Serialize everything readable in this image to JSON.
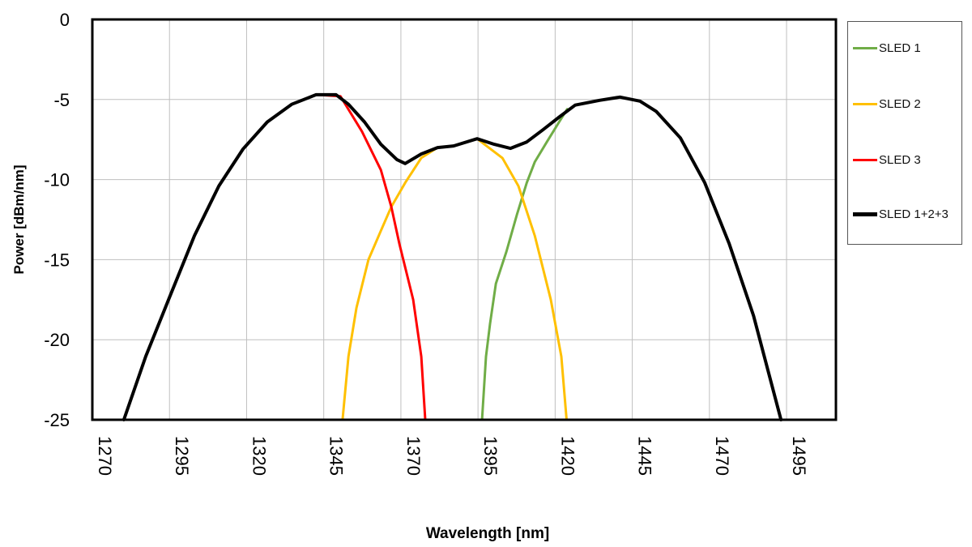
{
  "chart_data": {
    "type": "line",
    "title": "",
    "xlabel": "Wavelength [nm]",
    "ylabel": "Power [dBm/nm]",
    "xlim": [
      1270,
      1511
    ],
    "ylim": [
      -25,
      0
    ],
    "xticks": [
      1270,
      1295,
      1320,
      1345,
      1370,
      1395,
      1420,
      1445,
      1470,
      1495
    ],
    "yticks": [
      0,
      -5,
      -10,
      -15,
      -20,
      -25
    ],
    "xtick_labels": [
      "1270",
      "1295",
      "1320",
      "1345",
      "1370",
      "1395",
      "1420",
      "1445",
      "1470",
      "1495"
    ],
    "ytick_labels": [
      "0",
      "-5",
      "-10",
      "-15",
      "-20",
      "-25"
    ],
    "grid": true,
    "legend_position": "right",
    "series": [
      {
        "name": "SLED 1",
        "color": "#70ad47",
        "x": [
          1396.3,
          1397.6,
          1398.9,
          1400.8,
          1404.2,
          1407.6,
          1410.8,
          1413.4,
          1417.3,
          1421.3,
          1423.9
        ],
        "y": [
          -25,
          -21.05,
          -19.0,
          -16.5,
          -14.5,
          -12.2,
          -10.2,
          -8.9,
          -7.65,
          -6.4,
          -5.6
        ]
      },
      {
        "name": "SLED 2",
        "color": "#ffc000",
        "x": [
          1351.1,
          1353.0,
          1355.6,
          1359.5,
          1363.5,
          1366.9,
          1371.4,
          1376.6,
          1381.9,
          1387.1,
          1394.7,
          1402.9,
          1408.1,
          1413.4,
          1418.6,
          1422.0,
          1423.7
        ],
        "y": [
          -25,
          -21.05,
          -18.0,
          -15.0,
          -13.2,
          -11.7,
          -10.2,
          -8.65,
          -8.0,
          -7.9,
          -7.45,
          -8.65,
          -10.4,
          -13.5,
          -17.5,
          -21.05,
          -25
        ]
      },
      {
        "name": "SLED 3",
        "color": "#ff0000",
        "x": [
          1342.5,
          1350.4,
          1357.4,
          1363.5,
          1366.9,
          1369.5,
          1374.0,
          1376.6,
          1377.9
        ],
        "y": [
          -4.7,
          -4.8,
          -7.0,
          -9.4,
          -11.7,
          -14.0,
          -17.5,
          -21.05,
          -25
        ]
      },
      {
        "name": "SLED 1+2+3",
        "color": "#000000",
        "x": [
          1280.2,
          1287.3,
          1294.7,
          1303.1,
          1311.0,
          1318.8,
          1326.7,
          1334.6,
          1342.5,
          1349.0,
          1353.0,
          1358.2,
          1363.5,
          1368.7,
          1371.4,
          1376.6,
          1381.9,
          1387.1,
          1394.7,
          1400.3,
          1405.5,
          1410.8,
          1416.0,
          1421.3,
          1426.5,
          1434.4,
          1441.0,
          1447.5,
          1452.8,
          1460.6,
          1468.5,
          1476.4,
          1484.3,
          1493.2
        ],
        "y": [
          -25,
          -21.05,
          -17.5,
          -13.5,
          -10.4,
          -8.1,
          -6.4,
          -5.3,
          -4.7,
          -4.7,
          -5.3,
          -6.4,
          -7.8,
          -8.75,
          -9.0,
          -8.4,
          -8.0,
          -7.9,
          -7.45,
          -7.8,
          -8.05,
          -7.65,
          -6.9,
          -6.1,
          -5.35,
          -5.05,
          -4.85,
          -5.1,
          -5.75,
          -7.4,
          -10.2,
          -14.0,
          -18.5,
          -25
        ]
      }
    ]
  }
}
